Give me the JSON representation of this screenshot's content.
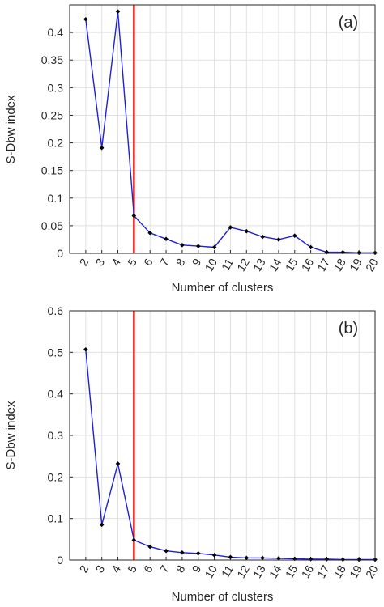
{
  "chart_data": [
    {
      "type": "line",
      "panel_label": "(a)",
      "xlabel": "Number of clusters",
      "ylabel": "S-Dbw index",
      "categories": [
        "2",
        "3",
        "4",
        "5",
        "6",
        "7",
        "8",
        "9",
        "10",
        "11",
        "12",
        "13",
        "14",
        "15",
        "16",
        "17",
        "18",
        "19",
        "20"
      ],
      "values": [
        0.424,
        0.191,
        0.438,
        0.068,
        0.037,
        0.026,
        0.015,
        0.013,
        0.011,
        0.047,
        0.04,
        0.03,
        0.025,
        0.032,
        0.011,
        0.002,
        0.002,
        0.001,
        0.001
      ],
      "ylim": [
        0,
        0.45
      ],
      "yticks": [
        0,
        0.05,
        0.1,
        0.15,
        0.2,
        0.25,
        0.3,
        0.35,
        0.4
      ],
      "ytick_labels": [
        "0",
        "0.05",
        "0.1",
        "0.15",
        "0.2",
        "0.25",
        "0.3",
        "0.35",
        "0.4"
      ],
      "xlim": [
        1,
        20
      ],
      "marker_line_x": 5,
      "grid": true,
      "colors": {
        "line": "#1f1fd6",
        "marker": "#000000",
        "vline": "#e8211b",
        "grid": "#e1e1e1"
      }
    },
    {
      "type": "line",
      "panel_label": "(b)",
      "xlabel": "Number of clusters",
      "ylabel": "S-Dbw index",
      "categories": [
        "2",
        "3",
        "4",
        "5",
        "6",
        "7",
        "8",
        "9",
        "10",
        "11",
        "12",
        "13",
        "14",
        "15",
        "16",
        "17",
        "18",
        "19",
        "20"
      ],
      "values": [
        0.507,
        0.085,
        0.232,
        0.048,
        0.032,
        0.022,
        0.018,
        0.016,
        0.012,
        0.007,
        0.005,
        0.005,
        0.004,
        0.003,
        0.002,
        0.002,
        0.001,
        0.001,
        0.001
      ],
      "ylim": [
        0,
        0.6
      ],
      "yticks": [
        0,
        0.1,
        0.2,
        0.3,
        0.4,
        0.5,
        0.6
      ],
      "ytick_labels": [
        "0",
        "0.1",
        "0.2",
        "0.3",
        "0.4",
        "0.5",
        "0.6"
      ],
      "xlim": [
        1,
        20
      ],
      "marker_line_x": 5,
      "grid": true,
      "colors": {
        "line": "#1f1fd6",
        "marker": "#000000",
        "vline": "#e8211b",
        "grid": "#e1e1e1"
      }
    }
  ]
}
